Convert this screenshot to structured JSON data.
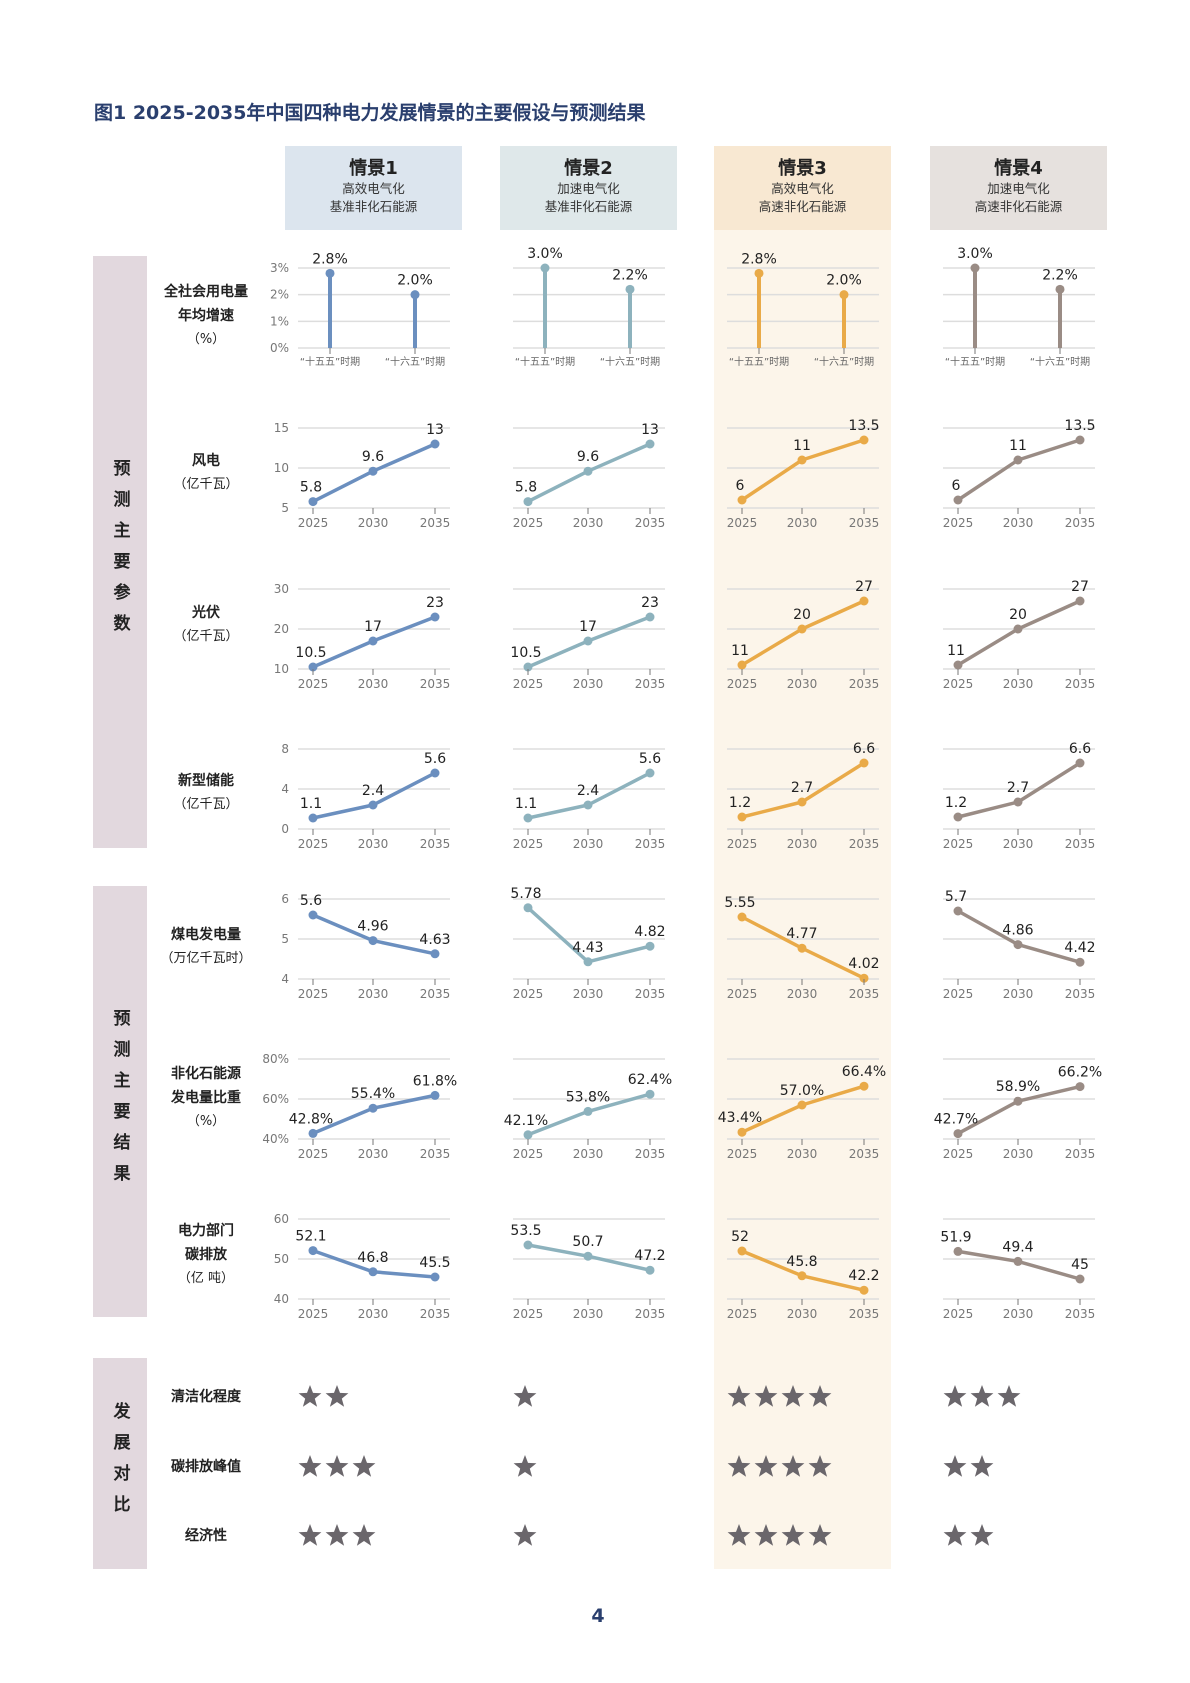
{
  "title": "图1 2025-2035年中国四种电力发展情景的主要假设与预测结果",
  "page_number": "4",
  "colors": {
    "s1": "#6b8fbf",
    "s2": "#8db2bd",
    "s3": "#e9aa48",
    "s4": "#9a8c85",
    "band": "#e2d8de",
    "star": "#6a666b",
    "grid": "#dddddd"
  },
  "scenarios": [
    {
      "name": "情景1",
      "desc": [
        "高效电气化",
        "基准非化石能源"
      ],
      "header_bg": "#dce5ee",
      "color": "#6b8fbf"
    },
    {
      "name": "情景2",
      "desc": [
        "加速电气化",
        "基准非化石能源"
      ],
      "header_bg": "#dfe8ea",
      "color": "#8db2bd"
    },
    {
      "name": "情景3",
      "desc": [
        "高效电气化",
        "高速非化石能源"
      ],
      "header_bg": "#f8e8d2",
      "color": "#e9aa48"
    },
    {
      "name": "情景4",
      "desc": [
        "加速电气化",
        "高速非化石能源"
      ],
      "header_bg": "#e6e1de",
      "color": "#9a8c85"
    }
  ],
  "bands": [
    "预测主要参数",
    "预测主要结果",
    "发展对比"
  ],
  "chart_data": [
    {
      "type": "lollipop",
      "label": [
        "全社会用电量",
        "年均增速"
      ],
      "unit": "（%）",
      "categories": [
        "“十五五”时期",
        "“十六五”时期"
      ],
      "yticks": [
        "0%",
        "1%",
        "2%",
        "3%"
      ],
      "ylim": [
        0,
        3
      ],
      "series": [
        {
          "values": [
            2.8,
            2.0
          ],
          "labels": [
            "2.8%",
            "2.0%"
          ]
        },
        {
          "values": [
            3.0,
            2.2
          ],
          "labels": [
            "3.0%",
            "2.2%"
          ]
        },
        {
          "values": [
            2.8,
            2.0
          ],
          "labels": [
            "2.8%",
            "2.0%"
          ]
        },
        {
          "values": [
            3.0,
            2.2
          ],
          "labels": [
            "3.0%",
            "2.2%"
          ]
        }
      ]
    },
    {
      "type": "line",
      "label": [
        "风电"
      ],
      "unit": "（亿千瓦）",
      "categories": [
        "2025",
        "2030",
        "2035"
      ],
      "yticks": [
        "5",
        "10",
        "15"
      ],
      "ylim": [
        5,
        15
      ],
      "series": [
        {
          "values": [
            5.8,
            9.6,
            13
          ],
          "labels": [
            "5.8",
            "9.6",
            "13"
          ]
        },
        {
          "values": [
            5.8,
            9.6,
            13
          ],
          "labels": [
            "5.8",
            "9.6",
            "13"
          ]
        },
        {
          "values": [
            6,
            11,
            13.5
          ],
          "labels": [
            "6",
            "11",
            "13.5"
          ]
        },
        {
          "values": [
            6,
            11,
            13.5
          ],
          "labels": [
            "6",
            "11",
            "13.5"
          ]
        }
      ]
    },
    {
      "type": "line",
      "label": [
        "光伏"
      ],
      "unit": "（亿千瓦）",
      "categories": [
        "2025",
        "2030",
        "2035"
      ],
      "yticks": [
        "10",
        "20",
        "30"
      ],
      "ylim": [
        10,
        30
      ],
      "series": [
        {
          "values": [
            10.5,
            17,
            23
          ],
          "labels": [
            "10.5",
            "17",
            "23"
          ]
        },
        {
          "values": [
            10.5,
            17,
            23
          ],
          "labels": [
            "10.5",
            "17",
            "23"
          ]
        },
        {
          "values": [
            11,
            20,
            27
          ],
          "labels": [
            "11",
            "20",
            "27"
          ]
        },
        {
          "values": [
            11,
            20,
            27
          ],
          "labels": [
            "11",
            "20",
            "27"
          ]
        }
      ]
    },
    {
      "type": "line",
      "label": [
        "新型储能"
      ],
      "unit": "（亿千瓦）",
      "categories": [
        "2025",
        "2030",
        "2035"
      ],
      "yticks": [
        "0",
        "4",
        "8"
      ],
      "ylim": [
        0,
        8
      ],
      "series": [
        {
          "values": [
            1.1,
            2.4,
            5.6
          ],
          "labels": [
            "1.1",
            "2.4",
            "5.6"
          ]
        },
        {
          "values": [
            1.1,
            2.4,
            5.6
          ],
          "labels": [
            "1.1",
            "2.4",
            "5.6"
          ]
        },
        {
          "values": [
            1.2,
            2.7,
            6.6
          ],
          "labels": [
            "1.2",
            "2.7",
            "6.6"
          ]
        },
        {
          "values": [
            1.2,
            2.7,
            6.6
          ],
          "labels": [
            "1.2",
            "2.7",
            "6.6"
          ]
        }
      ]
    },
    {
      "type": "line",
      "label": [
        "煤电发电量"
      ],
      "unit": "（万亿千瓦时）",
      "categories": [
        "2025",
        "2030",
        "2035"
      ],
      "yticks": [
        "4",
        "5",
        "6"
      ],
      "ylim": [
        4,
        6
      ],
      "series": [
        {
          "values": [
            5.6,
            4.96,
            4.63
          ],
          "labels": [
            "5.6",
            "4.96",
            "4.63"
          ]
        },
        {
          "values": [
            5.78,
            4.43,
            4.82
          ],
          "labels": [
            "5.78",
            "4.43",
            "4.82"
          ]
        },
        {
          "values": [
            5.55,
            4.77,
            4.02
          ],
          "labels": [
            "5.55",
            "4.77",
            "4.02"
          ]
        },
        {
          "values": [
            5.7,
            4.86,
            4.42
          ],
          "labels": [
            "5.7",
            "4.86",
            "4.42"
          ]
        }
      ]
    },
    {
      "type": "line",
      "label": [
        "非化石能源",
        "发电量比重"
      ],
      "unit": "（%）",
      "categories": [
        "2025",
        "2030",
        "2035"
      ],
      "yticks": [
        "40%",
        "60%",
        "80%"
      ],
      "ylim": [
        40,
        80
      ],
      "series": [
        {
          "values": [
            42.8,
            55.4,
            61.8
          ],
          "labels": [
            "42.8%",
            "55.4%",
            "61.8%"
          ]
        },
        {
          "values": [
            42.1,
            53.8,
            62.4
          ],
          "labels": [
            "42.1%",
            "53.8%",
            "62.4%"
          ]
        },
        {
          "values": [
            43.4,
            57.0,
            66.4
          ],
          "labels": [
            "43.4%",
            "57.0%",
            "66.4%"
          ]
        },
        {
          "values": [
            42.7,
            58.9,
            66.2
          ],
          "labels": [
            "42.7%",
            "58.9%",
            "66.2%"
          ]
        }
      ]
    },
    {
      "type": "line",
      "label": [
        "电力部门",
        "碳排放"
      ],
      "unit": "（亿 吨）",
      "categories": [
        "2025",
        "2030",
        "2035"
      ],
      "yticks": [
        "40",
        "50",
        "60"
      ],
      "ylim": [
        40,
        60
      ],
      "series": [
        {
          "values": [
            52.1,
            46.8,
            45.5
          ],
          "labels": [
            "52.1",
            "46.8",
            "45.5"
          ]
        },
        {
          "values": [
            53.5,
            50.7,
            47.2
          ],
          "labels": [
            "53.5",
            "50.7",
            "47.2"
          ]
        },
        {
          "values": [
            52,
            45.8,
            42.2
          ],
          "labels": [
            "52",
            "45.8",
            "42.2"
          ]
        },
        {
          "values": [
            51.9,
            49.4,
            45
          ],
          "labels": [
            "51.9",
            "49.4",
            "45"
          ]
        }
      ]
    }
  ],
  "ratings": [
    {
      "label": "清洁化程度",
      "stars": [
        2,
        1,
        4,
        3
      ]
    },
    {
      "label": "碳排放峰值",
      "stars": [
        3,
        1,
        4,
        2
      ]
    },
    {
      "label": "经济性",
      "stars": [
        3,
        1,
        4,
        2
      ]
    }
  ]
}
